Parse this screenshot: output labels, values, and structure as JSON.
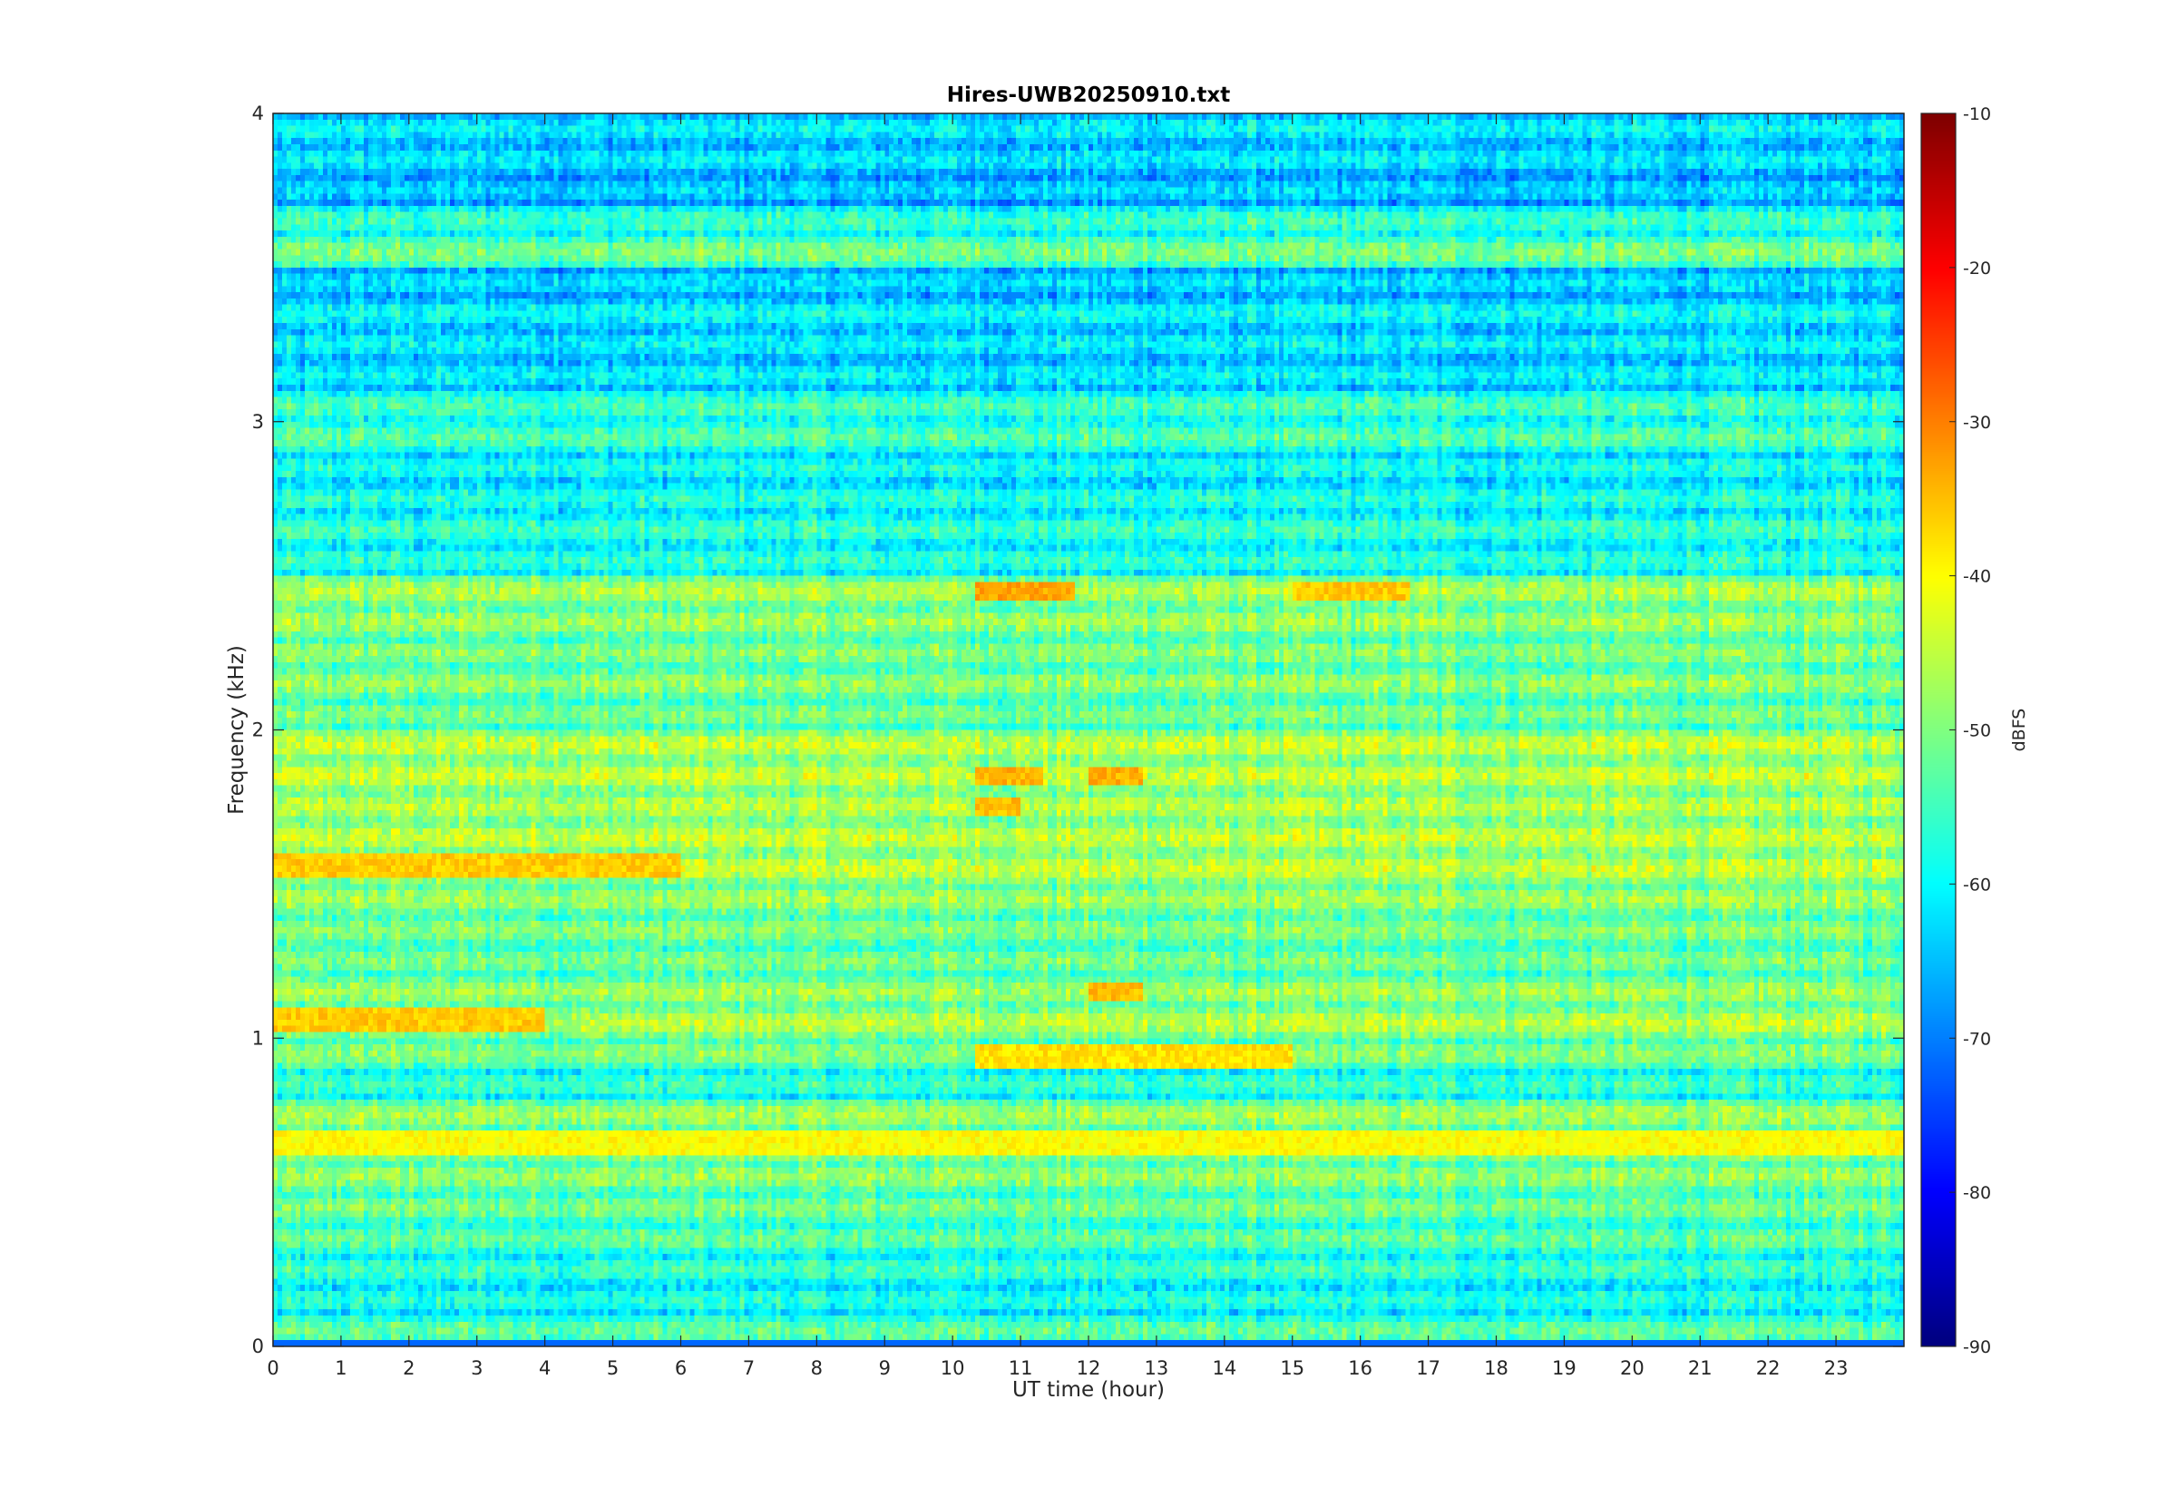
{
  "chart_data": {
    "type": "heatmap",
    "title": "Hires-UWB20250910.txt",
    "xlabel": "UT time (hour)",
    "ylabel": "Frequency (kHz)",
    "xlim": [
      0,
      24
    ],
    "ylim": [
      0,
      4
    ],
    "x_ticks": [
      0,
      1,
      2,
      3,
      4,
      5,
      6,
      7,
      8,
      9,
      10,
      11,
      12,
      13,
      14,
      15,
      16,
      17,
      18,
      19,
      20,
      21,
      22,
      23
    ],
    "y_ticks": [
      0,
      1,
      2,
      3,
      4
    ],
    "colormap": "jet",
    "colorbar": {
      "label": "dBFS",
      "range": [
        -90,
        -10
      ],
      "ticks": [
        -90,
        -80,
        -70,
        -60,
        -50,
        -40,
        -30,
        -20,
        -10
      ]
    },
    "frequency_bands_khz": [
      0.04,
      0.15,
      0.25,
      0.35,
      0.45,
      0.55,
      0.65,
      0.75,
      0.85,
      0.95,
      1.05,
      1.15,
      1.25,
      1.35,
      1.45,
      1.55,
      1.65,
      1.75,
      1.85,
      1.95,
      2.05,
      2.15,
      2.25,
      2.35,
      2.45,
      2.55,
      2.65,
      2.75,
      2.85,
      2.95,
      3.05,
      3.15,
      3.25,
      3.35,
      3.45,
      3.55,
      3.65,
      3.75,
      3.85,
      3.95
    ],
    "band_mean_dbfs": [
      -52,
      -57,
      -55,
      -52,
      -50,
      -48,
      -45,
      -47,
      -55,
      -49,
      -45,
      -47,
      -50,
      -49,
      -47,
      -44,
      -44,
      -45,
      -44,
      -44,
      -50,
      -48,
      -49,
      -47,
      -46,
      -56,
      -55,
      -57,
      -58,
      -53,
      -54,
      -60,
      -60,
      -59,
      -62,
      -50,
      -55,
      -63,
      -61,
      -60
    ],
    "hotspots": [
      {
        "t_start": 10.3,
        "t_end": 11.8,
        "f_khz": 2.45,
        "dbfs": -33
      },
      {
        "t_start": 15.0,
        "t_end": 16.7,
        "f_khz": 2.45,
        "dbfs": -36
      },
      {
        "t_start": 10.3,
        "t_end": 11.3,
        "f_khz": 1.85,
        "dbfs": -34
      },
      {
        "t_start": 12.0,
        "t_end": 12.8,
        "f_khz": 1.85,
        "dbfs": -34
      },
      {
        "t_start": 10.3,
        "t_end": 11.0,
        "f_khz": 1.75,
        "dbfs": -35
      },
      {
        "t_start": 0.0,
        "t_end": 4.0,
        "f_khz": 1.05,
        "dbfs": -36
      },
      {
        "t_start": 0.0,
        "t_end": 6.0,
        "f_khz": 1.55,
        "dbfs": -36
      },
      {
        "t_start": 10.3,
        "t_end": 15.0,
        "f_khz": 0.95,
        "dbfs": -38
      },
      {
        "t_start": 12.0,
        "t_end": 12.8,
        "f_khz": 1.15,
        "dbfs": -35
      },
      {
        "t_start": 0.0,
        "t_end": 24.0,
        "f_khz": 0.65,
        "dbfs": -40
      }
    ]
  }
}
